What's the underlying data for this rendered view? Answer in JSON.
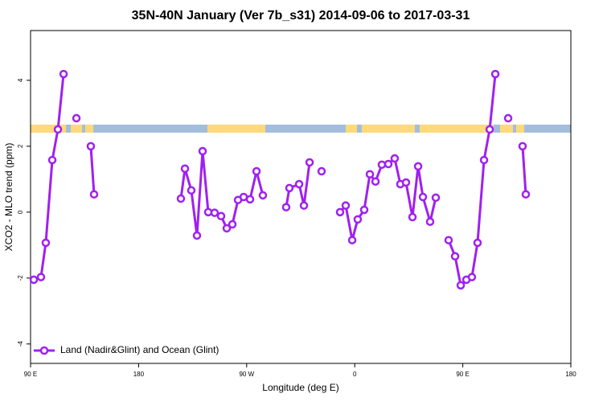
{
  "chart_data": {
    "type": "line",
    "title": "35N-40N January (Ver 7b_s31)   2014-09-06 to 2017-03-31",
    "x_label": "Longitude (deg E)",
    "y_label": "XCO2 - MLO trend (ppm)",
    "xlim": [
      90,
      540
    ],
    "xticks": [
      {
        "value": 90,
        "label": "90 E"
      },
      180,
      {
        "value": 270,
        "label": "90 W"
      },
      {
        "value": 360,
        "label": "0"
      },
      {
        "value": 450,
        "label": "90 E"
      },
      {
        "value": 540,
        "label": "180"
      }
    ],
    "ylim": [
      -4.59,
      5.51
    ],
    "yticks": [
      -4,
      -2,
      0,
      2,
      4
    ],
    "legend": "bottom-left",
    "series": [
      {
        "name": "Land (Nadir&Glint) and Ocean (Glint)",
        "color": "#a020f0",
        "x": [
          92.7,
          98.7,
          102.7,
          108.1,
          112.8,
          117.5,
          null,
          128.2,
          null,
          140.2,
          142.9,
          null,
          215.2,
          218.6,
          223.9,
          228.6,
          233.3,
          238.0,
          243.3,
          248.7,
          253.4,
          258.1,
          262.8,
          267.5,
          272.8,
          278.2,
          283.5,
          null,
          302.9,
          305.6,
          313.7,
          317.7,
          322.4,
          null,
          332.4,
          null,
          347.8,
          352.5,
          357.9,
          362.5,
          367.9,
          372.6,
          377.3,
          382.6,
          388.0,
          393.3,
          398.0,
          402.7,
          408.1,
          412.8,
          416.8,
          422.8,
          427.5,
          null,
          438.2,
          443.6,
          448.3,
          453.0,
          457.6,
          462.3,
          467.7,
          472.4,
          477.1,
          null,
          487.8,
          null,
          499.8,
          502.5
        ],
        "values": [
          -2.05,
          -1.97,
          -0.93,
          1.58,
          2.51,
          4.19,
          null,
          2.85,
          null,
          2.0,
          0.54,
          null,
          0.41,
          1.32,
          0.66,
          -0.71,
          1.85,
          0,
          -0.02,
          -0.12,
          -0.49,
          -0.37,
          0.37,
          0.46,
          0.39,
          1.24,
          0.51,
          null,
          0.15,
          0.73,
          0.85,
          0.2,
          1.51,
          null,
          1.24,
          null,
          0,
          0.2,
          -0.85,
          -0.22,
          0.07,
          1.15,
          0.93,
          1.44,
          1.46,
          1.63,
          0.85,
          0.9,
          -0.15,
          1.39,
          0.46,
          -0.29,
          0.44,
          null,
          -0.85,
          -1.34,
          -2.22,
          -2.05,
          -1.97,
          -0.93,
          1.58,
          2.51,
          4.19,
          null,
          2.85,
          null,
          2.0,
          0.54
        ]
      }
    ]
  }
}
